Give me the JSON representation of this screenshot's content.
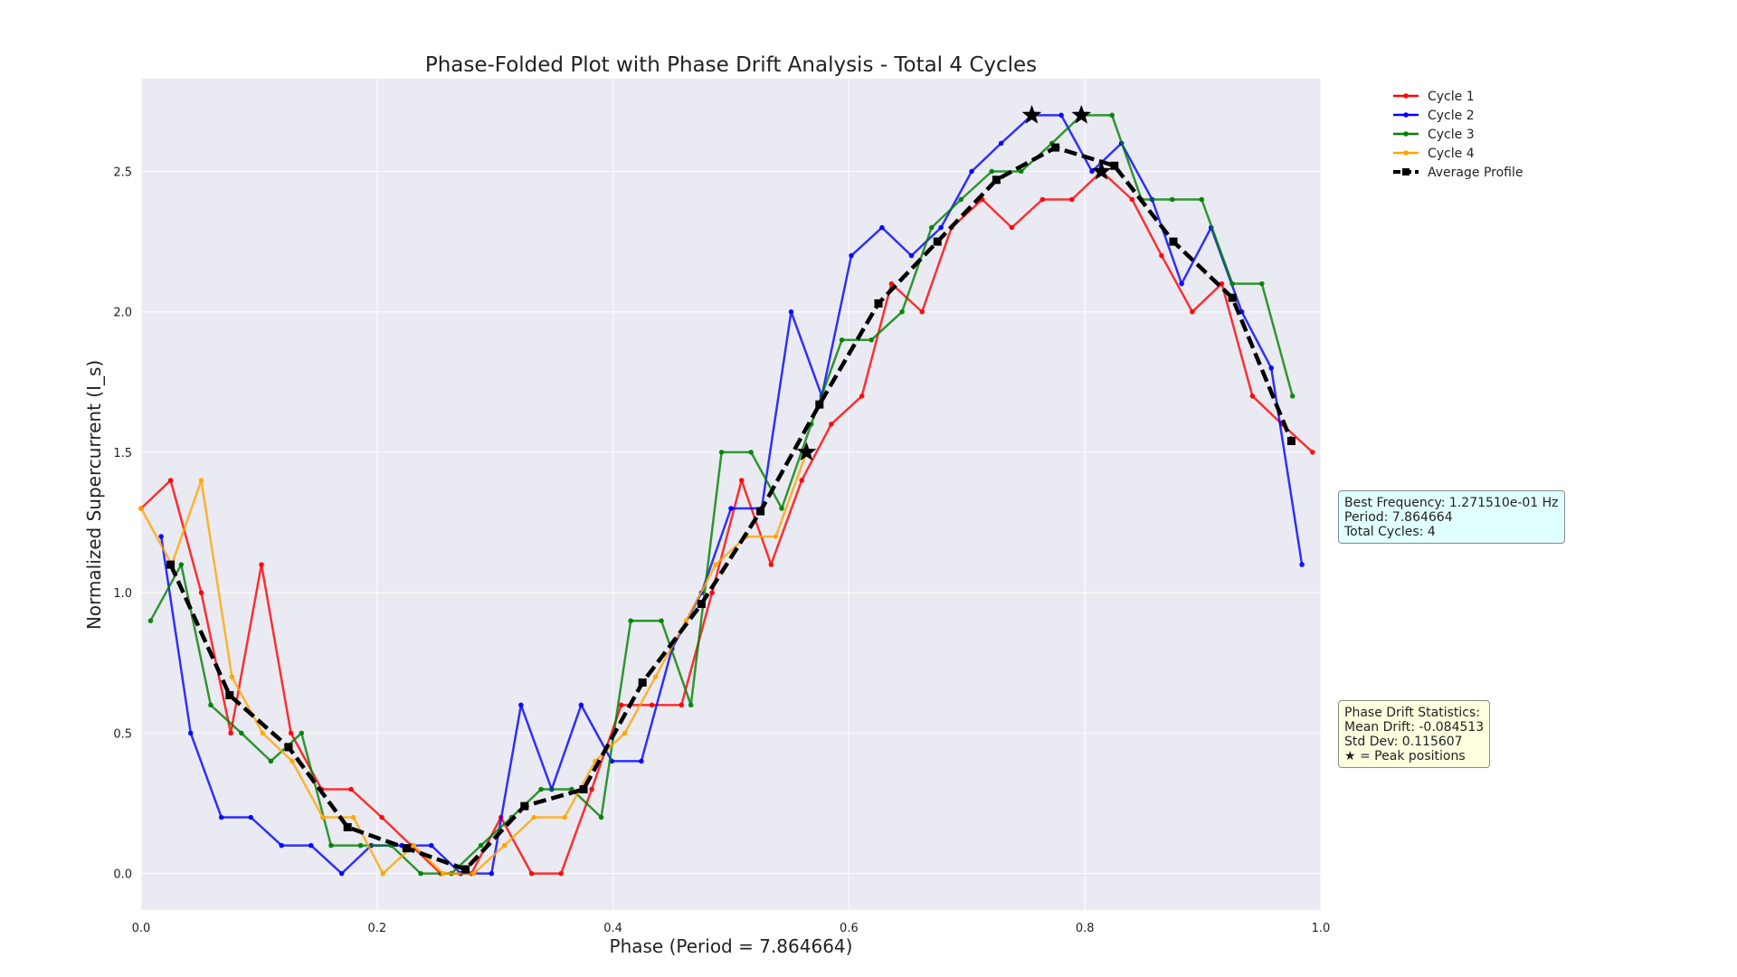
{
  "chart_data": {
    "type": "line",
    "title": "Phase-Folded Plot with Phase Drift Analysis - Total 4 Cycles",
    "xlabel": "Phase (Period = 7.864664)",
    "ylabel": "Normalized Supercurrent (I_s)",
    "xlim": [
      0,
      1
    ],
    "ylim": [
      -0.13,
      2.83
    ],
    "xticks": [
      "0.0",
      "0.2",
      "0.4",
      "0.6",
      "0.8",
      "1.0"
    ],
    "yticks": [
      "0.0",
      "0.5",
      "1.0",
      "1.5",
      "2.0",
      "2.5"
    ],
    "grid": true,
    "legend_position": "upper-right outside plot",
    "series": [
      {
        "name": "Cycle 1",
        "color": "#ff0000",
        "x": [
          0.0,
          0.025,
          0.051,
          0.076,
          0.102,
          0.127,
          0.153,
          0.178,
          0.204,
          0.229,
          0.254,
          0.28,
          0.305,
          0.331,
          0.356,
          0.382,
          0.407,
          0.433,
          0.458,
          0.484,
          0.509,
          0.534,
          0.56,
          0.585,
          0.611,
          0.636,
          0.662,
          0.687,
          0.713,
          0.738,
          0.764,
          0.789,
          0.814,
          0.84,
          0.865,
          0.891,
          0.916,
          0.942,
          0.967,
          0.993
        ],
        "y": [
          1.3,
          1.4,
          1.0,
          0.5,
          1.1,
          0.5,
          0.3,
          0.3,
          0.2,
          0.1,
          0.0,
          0.0,
          0.2,
          0.0,
          0.0,
          0.3,
          0.6,
          0.6,
          0.6,
          1.0,
          1.4,
          1.1,
          1.4,
          1.6,
          1.7,
          2.1,
          2.0,
          2.3,
          2.4,
          2.3,
          2.4,
          2.4,
          2.5,
          2.4,
          2.2,
          2.0,
          2.1,
          1.7,
          1.6,
          1.5
        ]
      },
      {
        "name": "Cycle 2",
        "color": "#0000ff",
        "x": [
          0.017,
          0.042,
          0.068,
          0.093,
          0.119,
          0.144,
          0.17,
          0.195,
          0.221,
          0.246,
          0.271,
          0.297,
          0.322,
          0.348,
          0.373,
          0.399,
          0.424,
          0.45,
          0.475,
          0.5,
          0.526,
          0.551,
          0.577,
          0.602,
          0.628,
          0.653,
          0.678,
          0.704,
          0.729,
          0.755,
          0.78,
          0.806,
          0.831,
          0.857,
          0.882,
          0.907,
          0.933,
          0.958,
          0.984
        ],
        "y": [
          1.2,
          0.5,
          0.2,
          0.2,
          0.1,
          0.1,
          0.0,
          0.1,
          0.1,
          0.1,
          0.0,
          0.0,
          0.6,
          0.3,
          0.6,
          0.4,
          0.4,
          0.8,
          1.0,
          1.3,
          1.3,
          2.0,
          1.7,
          2.2,
          2.3,
          2.2,
          2.3,
          2.5,
          2.6,
          2.7,
          2.7,
          2.5,
          2.6,
          2.4,
          2.1,
          2.3,
          2.0,
          1.8,
          1.1
        ]
      },
      {
        "name": "Cycle 3",
        "color": "#008000",
        "x": [
          0.008,
          0.034,
          0.059,
          0.085,
          0.11,
          0.136,
          0.161,
          0.186,
          0.212,
          0.237,
          0.263,
          0.288,
          0.314,
          0.339,
          0.365,
          0.39,
          0.415,
          0.441,
          0.466,
          0.492,
          0.517,
          0.543,
          0.568,
          0.594,
          0.619,
          0.645,
          0.67,
          0.695,
          0.721,
          0.746,
          0.772,
          0.797,
          0.823,
          0.848,
          0.874,
          0.899,
          0.925,
          0.95,
          0.976
        ],
        "y": [
          0.9,
          1.1,
          0.6,
          0.5,
          0.4,
          0.5,
          0.1,
          0.1,
          0.1,
          0.0,
          0.0,
          0.1,
          0.2,
          0.3,
          0.3,
          0.2,
          0.9,
          0.9,
          0.6,
          1.5,
          1.5,
          1.3,
          1.6,
          1.9,
          1.9,
          2.0,
          2.3,
          2.4,
          2.5,
          2.5,
          2.6,
          2.7,
          2.7,
          2.4,
          2.4,
          2.4,
          2.1,
          2.1,
          1.7
        ]
      },
      {
        "name": "Cycle 4",
        "color": "#ffa500",
        "x": [
          0.0,
          0.026,
          0.051,
          0.077,
          0.103,
          0.128,
          0.154,
          0.18,
          0.205,
          0.231,
          0.256,
          0.282,
          0.308,
          0.333,
          0.359,
          0.385,
          0.41,
          0.436,
          0.462,
          0.487,
          0.513,
          0.538,
          0.564
        ],
        "y": [
          1.3,
          1.1,
          1.4,
          0.7,
          0.5,
          0.4,
          0.2,
          0.2,
          0.0,
          0.1,
          0.0,
          0.0,
          0.1,
          0.2,
          0.2,
          0.4,
          0.5,
          0.7,
          0.9,
          1.1,
          1.2,
          1.2,
          1.5
        ]
      },
      {
        "name": "Average Profile",
        "color": "#000000",
        "dashed": true,
        "x": [
          0.025,
          0.075,
          0.125,
          0.175,
          0.225,
          0.275,
          0.325,
          0.375,
          0.425,
          0.475,
          0.525,
          0.575,
          0.625,
          0.675,
          0.725,
          0.775,
          0.825,
          0.875,
          0.925,
          0.975
        ],
        "y": [
          1.1,
          0.635,
          0.45,
          0.165,
          0.09,
          0.015,
          0.24,
          0.3,
          0.68,
          0.96,
          1.29,
          1.67,
          2.03,
          2.25,
          2.47,
          2.585,
          2.52,
          2.25,
          2.05,
          1.54
        ]
      }
    ],
    "peaks": [
      {
        "series": "Cycle 1",
        "x": 0.814,
        "y": 2.5
      },
      {
        "series": "Cycle 2",
        "x": 0.755,
        "y": 2.7
      },
      {
        "series": "Cycle 3",
        "x": 0.797,
        "y": 2.7
      },
      {
        "series": "Cycle 4",
        "x": 0.564,
        "y": 1.5
      }
    ]
  },
  "info_box": {
    "line1": "Best Frequency: 1.271510e-01 Hz",
    "line2": "Period: 7.864664",
    "line3": "Total Cycles: 4"
  },
  "drift_box": {
    "line1": "Phase Drift Statistics:",
    "line2": "Mean Drift: -0.084513",
    "line3": "Std Dev: 0.115607",
    "line4": "★ = Peak positions"
  }
}
